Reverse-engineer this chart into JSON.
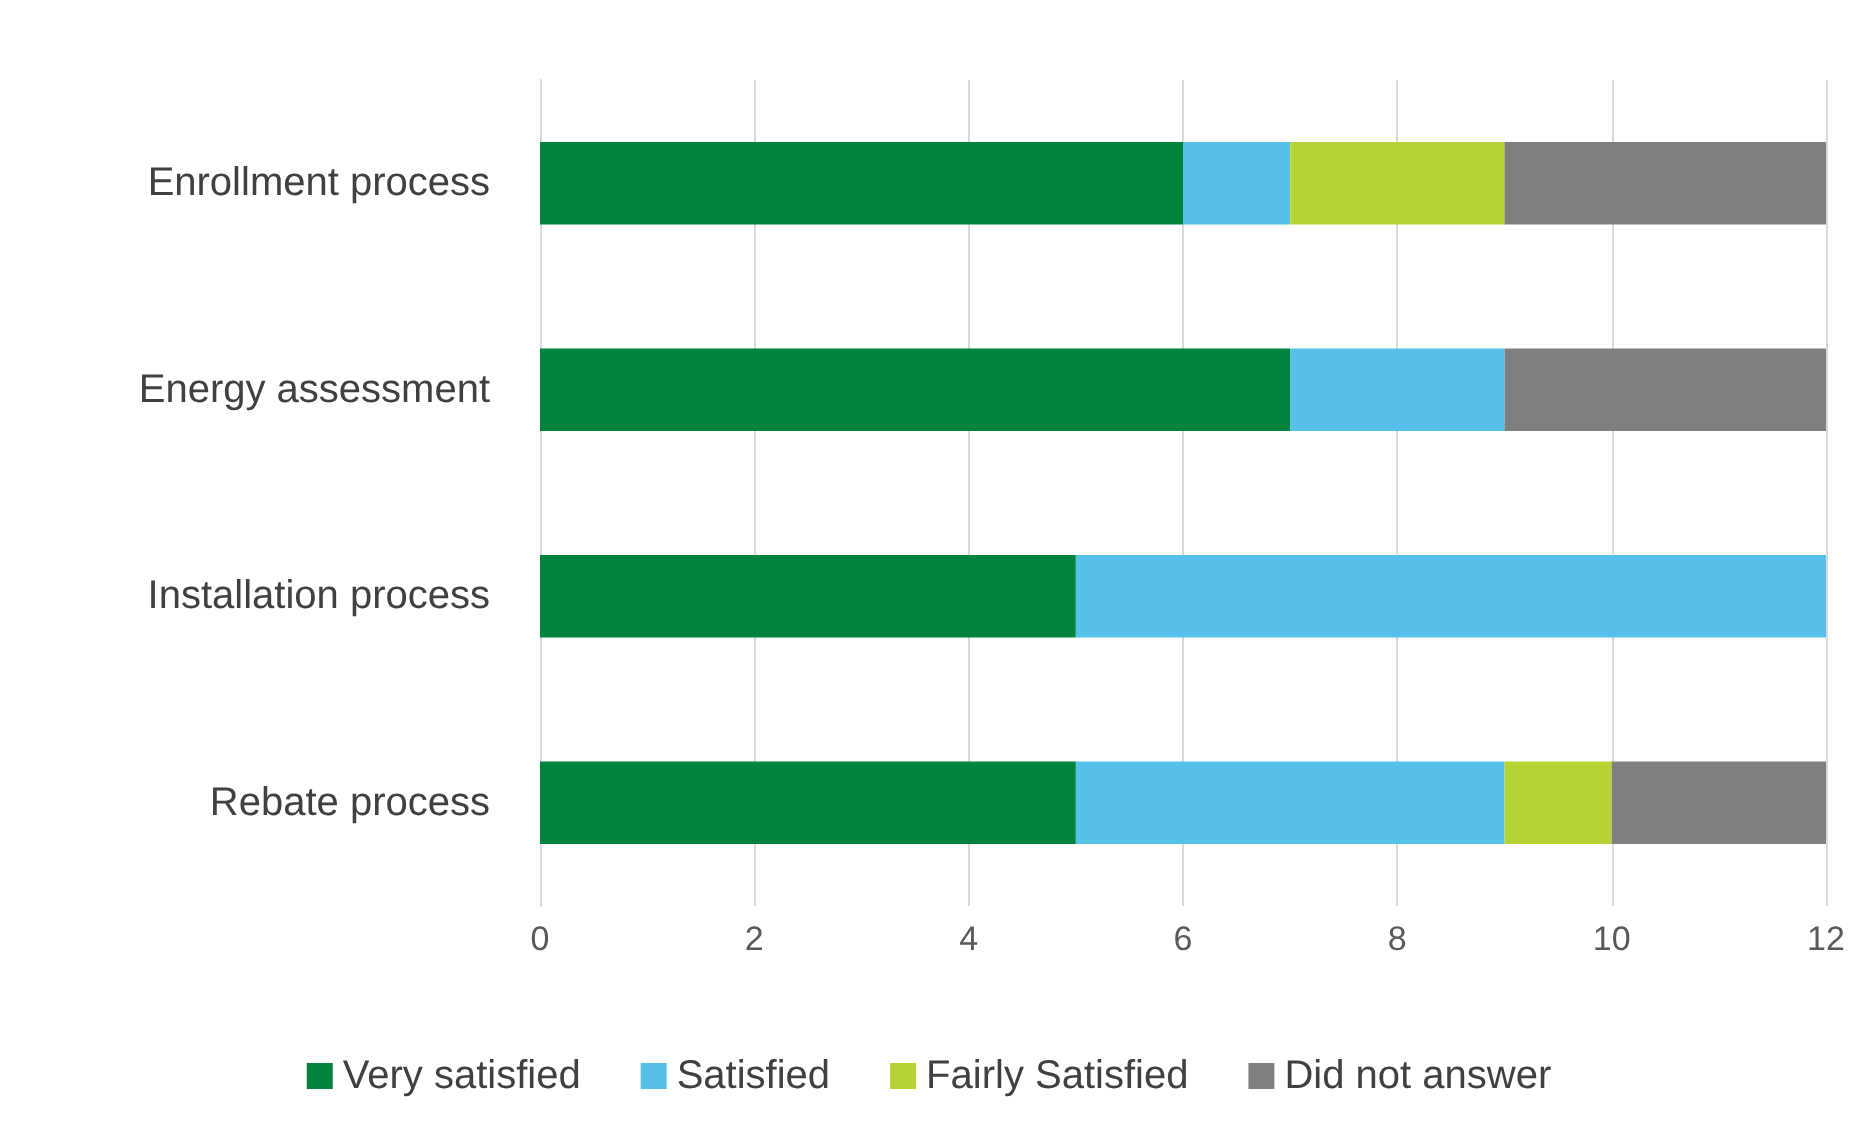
{
  "chart_data": {
    "type": "bar",
    "orientation": "horizontal",
    "stacked": true,
    "categories": [
      "Enrollment process",
      "Energy assessment",
      "Installation process",
      "Rebate process"
    ],
    "series": [
      {
        "name": "Very satisfied",
        "color": "#00843d",
        "values": [
          6,
          7,
          5,
          5
        ]
      },
      {
        "name": "Satisfied",
        "color": "#55c1e9",
        "values": [
          1,
          2,
          7,
          4
        ]
      },
      {
        "name": "Fairly Satisfied",
        "color": "#b5d334",
        "values": [
          2,
          0,
          0,
          1
        ]
      },
      {
        "name": "Did not answer",
        "color": "#7f7f7f",
        "values": [
          3,
          3,
          0,
          2
        ]
      }
    ],
    "xlim": [
      0,
      12
    ],
    "xticks": [
      0,
      2,
      4,
      6,
      8,
      10,
      12
    ],
    "grid": "x",
    "legend": "bottom"
  }
}
